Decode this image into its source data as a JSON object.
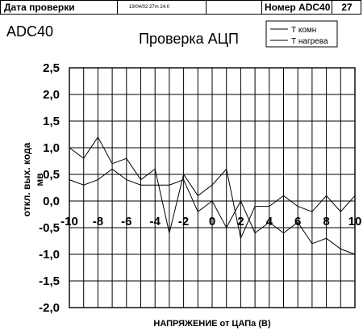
{
  "header": {
    "check_date_label": "Дата проверки",
    "check_date_value": "19/04/02  27m  24.0",
    "device_number_label": "Номер ADC40",
    "device_number_value": "27"
  },
  "chart_data": {
    "type": "line",
    "corner_label": "ADC40",
    "title": "Проверка АЦП",
    "xlabel": "НАПРЯЖЕНИЕ от ЦАПа (В)",
    "ylabel": "откл. вых. кода мв",
    "xlim": [
      -10,
      10
    ],
    "ylim": [
      -2.0,
      2.5
    ],
    "grid": true,
    "legend_position": "top-right",
    "x_tick_labels": [
      "-10",
      "-8",
      "-6",
      "-4",
      "-2",
      "0",
      "2",
      "4",
      "6",
      "8",
      "10"
    ],
    "y_tick_labels": [
      "2,5",
      "2,0",
      "1,5",
      "1,0",
      "0,5",
      "0,0",
      "-0,5",
      "-1,0",
      "-1,5",
      "-2,0"
    ],
    "series": [
      {
        "name": "Т комн",
        "x": [
          -10,
          -9,
          -8,
          -7,
          -6,
          -5,
          -4,
          -3,
          -2,
          -1,
          0,
          1,
          2,
          3,
          4,
          5,
          6,
          7,
          8,
          9,
          10
        ],
        "y": [
          1.0,
          0.8,
          1.2,
          0.7,
          0.8,
          0.4,
          0.6,
          -0.6,
          0.5,
          0.1,
          0.3,
          0.6,
          -0.7,
          -0.1,
          -0.1,
          0.1,
          -0.1,
          -0.2,
          0.1,
          -0.2,
          0.1
        ]
      },
      {
        "name": "Т нагрева",
        "x": [
          -10,
          -9,
          -8,
          -7,
          -6,
          -5,
          -4,
          -3,
          -2,
          -1,
          0,
          1,
          2,
          3,
          4,
          5,
          6,
          7,
          8,
          9,
          10
        ],
        "y": [
          0.4,
          0.3,
          0.4,
          0.6,
          0.4,
          0.3,
          0.3,
          0.3,
          0.4,
          -0.2,
          0.0,
          -0.5,
          0.0,
          -0.6,
          -0.4,
          -0.6,
          -0.4,
          -0.8,
          -0.7,
          -0.9,
          -1.0
        ]
      }
    ]
  }
}
